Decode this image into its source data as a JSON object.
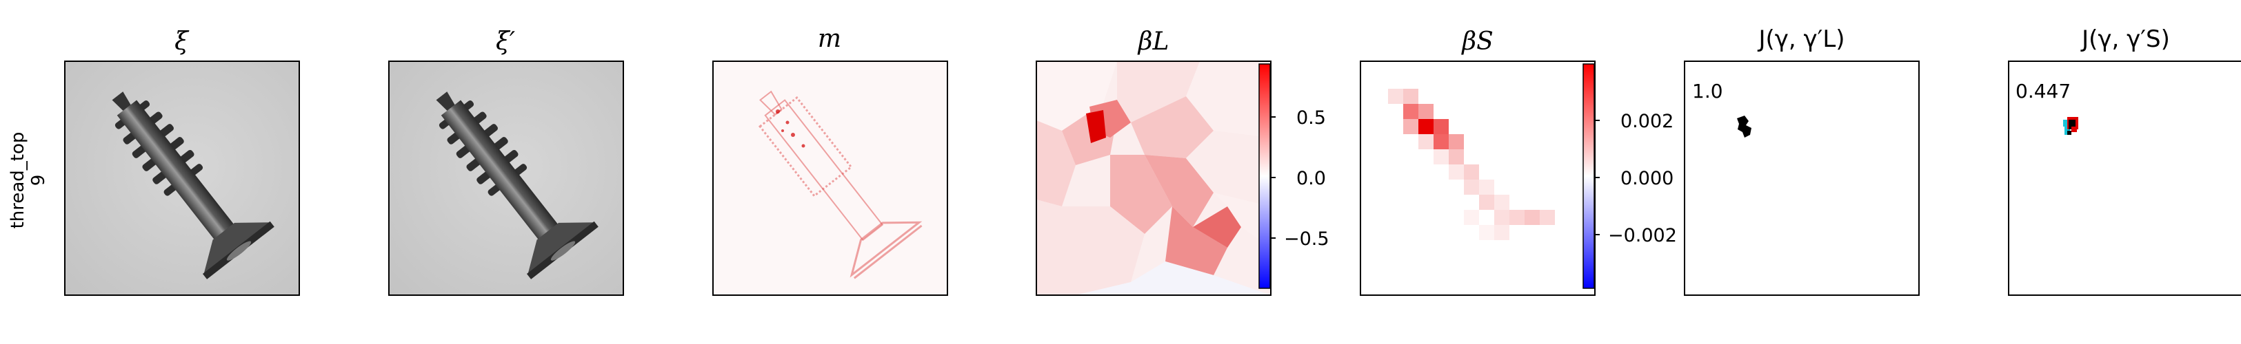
{
  "row_label": {
    "line1": "thread_top",
    "line2": "9"
  },
  "panels": [
    {
      "id": "xi",
      "title": "ξ"
    },
    {
      "id": "xi_prime",
      "title": "ξ′"
    },
    {
      "id": "m",
      "title": "m"
    },
    {
      "id": "beta_l",
      "title": "βL"
    },
    {
      "id": "beta_s",
      "title": "βS"
    },
    {
      "id": "j_l",
      "title": "J(γ, γ′L)",
      "value_label": "1.0"
    },
    {
      "id": "j_s",
      "title": "J(γ, γ′S)",
      "value_label": "0.447"
    }
  ],
  "colorbars": {
    "beta_l": {
      "ticks": [
        "0.5",
        "0.0",
        "−0.5"
      ],
      "colors": {
        "high": "#ff0000",
        "mid": "#ffffff",
        "low": "#0000ff"
      }
    },
    "beta_s": {
      "ticks": [
        "0.002",
        "0.000",
        "−0.002"
      ],
      "colors": {
        "high": "#ff0000",
        "mid": "#ffffff",
        "low": "#0000ff"
      }
    }
  }
}
